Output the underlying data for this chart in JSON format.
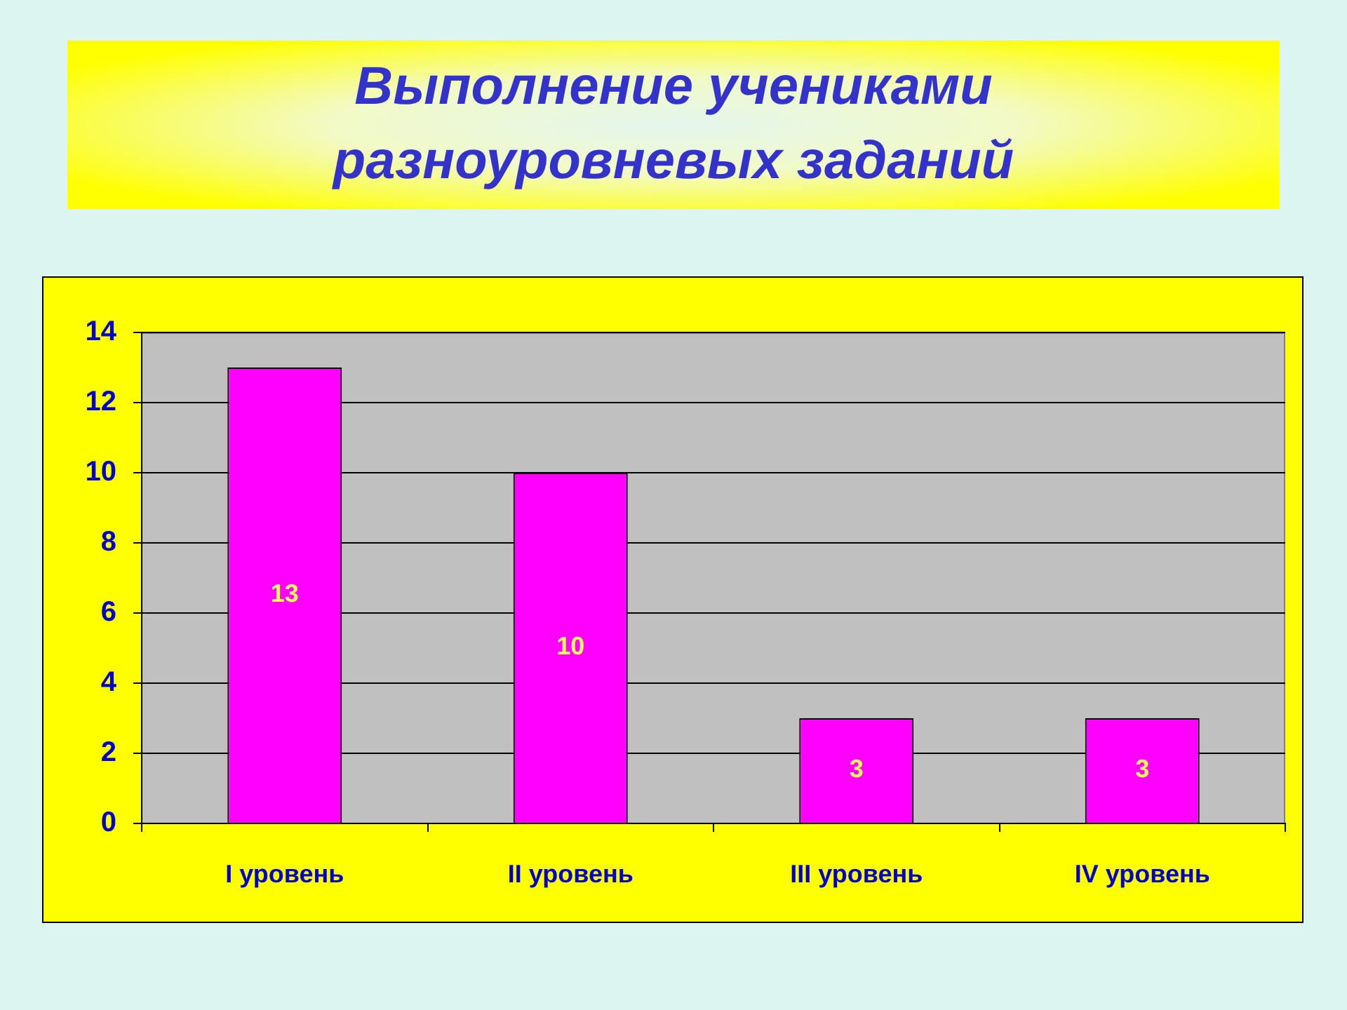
{
  "chart_data": {
    "type": "bar",
    "title": "Выполнение учениками разноуровневых заданий",
    "categories": [
      "I уровень",
      "II уровень",
      "III уровень",
      "IV уровень"
    ],
    "values": [
      13,
      10,
      3,
      3
    ],
    "color": "#ff00ff",
    "ylim": [
      0,
      14
    ],
    "yticks": [
      0,
      2,
      4,
      6,
      8,
      10,
      12,
      14
    ],
    "grid": "y",
    "data_labels": true
  }
}
